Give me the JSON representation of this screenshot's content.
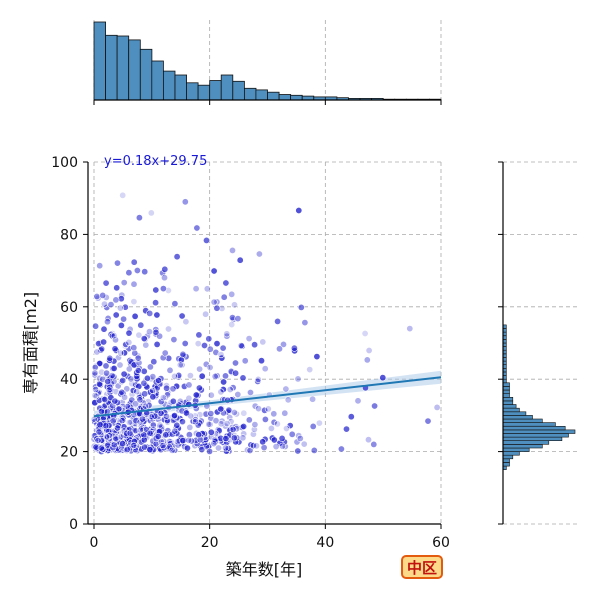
{
  "chart_data": {
    "type": "scatter",
    "xlabel": "築年数[年]",
    "ylabel": "専有面積[m2]",
    "xlim": [
      0,
      60
    ],
    "ylim": [
      0,
      100
    ],
    "x_ticks": [
      0,
      20,
      40,
      60
    ],
    "y_ticks": [
      0,
      20,
      40,
      60,
      80,
      100
    ],
    "grid": true,
    "point_color": "#1a1acc",
    "regression": {
      "label": "y=0.18x+29.75",
      "slope": 0.18,
      "intercept": 29.75,
      "color": "#1f77b4",
      "ci_color": "#a8c8ea"
    },
    "marginal_x_hist": {
      "bin_width": 2,
      "start": 0,
      "counts": [
        100,
        83,
        82,
        77,
        65,
        50,
        37,
        32,
        22,
        19,
        25,
        32,
        24,
        15,
        13,
        10,
        7,
        6,
        5,
        4,
        4,
        3,
        2,
        2,
        2,
        1,
        1,
        1,
        1,
        1
      ],
      "color": "#4f8fbf"
    },
    "marginal_y_hist": {
      "bin_width": 1,
      "start": 15,
      "counts": [
        1,
        2,
        2,
        3,
        5,
        8,
        12,
        14,
        18,
        20,
        22,
        19,
        16,
        12,
        9,
        7,
        5,
        4,
        3,
        3,
        2,
        2,
        2,
        2,
        1,
        1,
        1,
        1,
        1,
        1,
        1,
        1,
        1,
        1,
        1,
        1,
        1,
        1,
        1,
        1,
        0,
        0,
        0,
        0,
        0,
        0,
        0
      ],
      "color": "#4f8fbf"
    },
    "seed": 20240518
  },
  "badge": {
    "label": "中区",
    "bg": "#fdd98a",
    "border": "#e35b0e",
    "text_color": "#c0120f"
  }
}
